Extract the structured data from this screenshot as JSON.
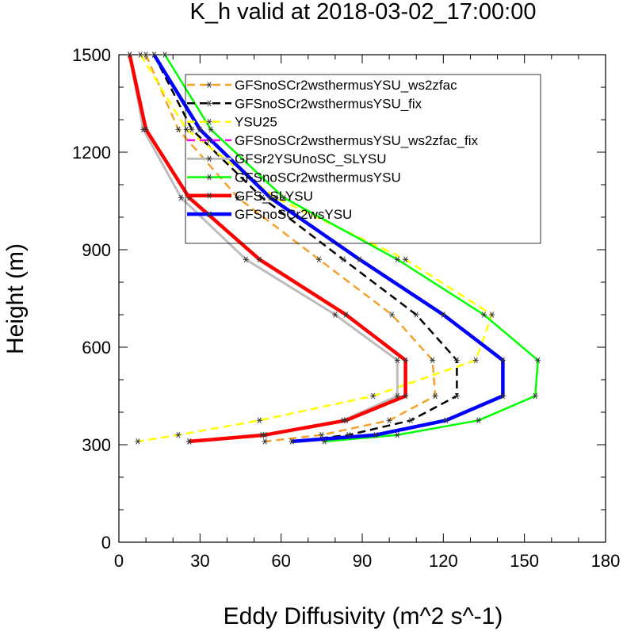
{
  "chart_data": {
    "type": "line",
    "title": "K_h valid at 2018-03-02_17:00:00",
    "xlabel": "Eddy Diffusivity (m^2 s^-1)",
    "ylabel": "Height (m)",
    "xlim": [
      0,
      180
    ],
    "ylim": [
      0,
      1500
    ],
    "xticks": [
      "0",
      "30",
      "60",
      "90",
      "120",
      "150",
      "180"
    ],
    "yticks": [
      "0",
      "300",
      "600",
      "900",
      "1200",
      "1500"
    ],
    "grid": false,
    "legend_position": "top-center",
    "series": [
      {
        "name": "GFSnoSCr2wsthermusYSU_ws2zfac",
        "color": "#f5a22d",
        "dash": "dashed",
        "width": 2.5,
        "x": [
          10,
          22,
          44,
          74,
          101,
          116,
          117,
          100,
          75,
          54
        ],
        "y": [
          1500,
          1270,
          1060,
          870,
          700,
          560,
          450,
          375,
          330,
          310
        ]
      },
      {
        "name": "GFSnoSCr2wsthermusYSU_fix",
        "color": "#000000",
        "dash": "dashed",
        "width": 2.5,
        "x": [
          13,
          27,
          53,
          83,
          110,
          125,
          125,
          108,
          85,
          64
        ],
        "y": [
          1500,
          1270,
          1060,
          870,
          700,
          560,
          450,
          375,
          330,
          310
        ]
      },
      {
        "name": "YSU25",
        "color": "#ffff00",
        "dash": "dashed",
        "width": 2.5,
        "x": [
          8,
          25,
          58,
          106,
          138,
          132,
          94,
          52,
          22,
          7
        ],
        "y": [
          1500,
          1270,
          1060,
          870,
          700,
          560,
          450,
          375,
          330,
          310
        ]
      },
      {
        "name": "GFSnoSCr2wsthermusYSU_ws2zfac_fix",
        "color": "#ff00ff",
        "dash": "dashed",
        "width": 2.5,
        "x": [],
        "y": []
      },
      {
        "name": "GFSr2YSUnoSC_SLYSU",
        "color": "#bdbdbd",
        "dash": "solid",
        "width": 3,
        "x": [
          4,
          9,
          23,
          47,
          80,
          103,
          103,
          83,
          53,
          26
        ],
        "y": [
          1500,
          1270,
          1060,
          870,
          700,
          560,
          450,
          375,
          330,
          310
        ]
      },
      {
        "name": "GFSnoSCr2wsthermusYSU",
        "color": "#00ff00",
        "dash": "solid",
        "width": 2.5,
        "x": [
          17,
          34,
          61,
          103,
          135,
          155,
          154,
          133,
          103,
          76
        ],
        "y": [
          1500,
          1270,
          1060,
          870,
          700,
          560,
          450,
          375,
          330,
          310
        ]
      },
      {
        "name": "GFS_SLYSU",
        "color": "#ff0000",
        "dash": "solid",
        "width": 4.5,
        "x": [
          4,
          10,
          26,
          52,
          84,
          106,
          106,
          84,
          54,
          26
        ],
        "y": [
          1500,
          1270,
          1060,
          870,
          700,
          560,
          450,
          375,
          330,
          310
        ]
      },
      {
        "name": "GFSnoSCr2wsYSU",
        "color": "#0000ff",
        "dash": "solid",
        "width": 4.5,
        "x": [
          13,
          30,
          56,
          89,
          120,
          142,
          142,
          121,
          95,
          64
        ],
        "y": [
          1500,
          1270,
          1060,
          870,
          700,
          560,
          450,
          375,
          330,
          310
        ]
      }
    ]
  }
}
